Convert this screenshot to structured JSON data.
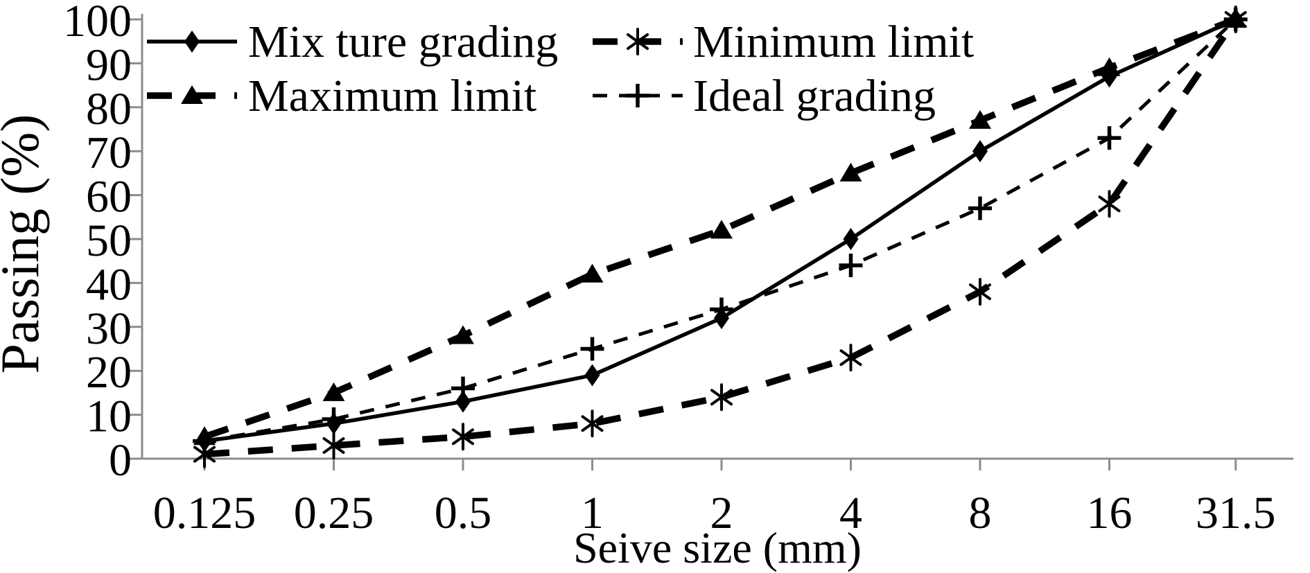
{
  "figure": {
    "background": "#ffffff"
  },
  "chart_data": {
    "type": "line",
    "title": "",
    "xlabel": "Seive size (mm)",
    "ylabel": "Passing (%)",
    "x_scale": "log2",
    "x_categories": [
      "0.125",
      "0.25",
      "0.5",
      "1",
      "2",
      "4",
      "8",
      "16",
      "31.5"
    ],
    "x_values": [
      0.125,
      0.25,
      0.5,
      1,
      2,
      4,
      8,
      16,
      31.5
    ],
    "y_ticks": [
      0,
      10,
      20,
      30,
      40,
      50,
      60,
      70,
      80,
      90,
      100
    ],
    "ylim": [
      0,
      100
    ],
    "grid": false,
    "legend_position": "top-left-two-columns",
    "legend_order": [
      0,
      2,
      1,
      3
    ],
    "series": [
      {
        "name": "Mix ture grading",
        "marker": "diamond",
        "line": "solid",
        "values": [
          4,
          8,
          13,
          19,
          32,
          50,
          70,
          87,
          100
        ]
      },
      {
        "name": "Maximum limit",
        "marker": "triangle",
        "line": "dashed-heavy",
        "values": [
          5,
          15,
          28,
          42,
          52,
          65,
          77,
          89,
          100
        ]
      },
      {
        "name": "Minimum limit",
        "marker": "asterisk",
        "line": "dashed-heavy",
        "values": [
          1,
          3,
          5,
          8,
          14,
          23,
          38,
          58,
          100
        ]
      },
      {
        "name": "Ideal grading",
        "marker": "plus",
        "line": "dashed-light",
        "values": [
          4,
          9,
          16,
          25,
          34,
          44,
          57,
          73,
          100
        ]
      }
    ],
    "colors": {
      "series": "#000000",
      "axis": "#8c8c8c",
      "text": "#000000",
      "background": "#ffffff"
    }
  }
}
